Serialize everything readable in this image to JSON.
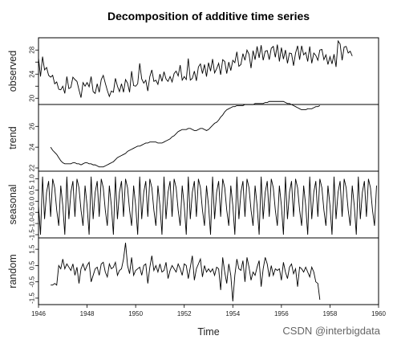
{
  "watermark": "CSDN @interbigdata",
  "chart_data": {
    "type": "line",
    "title": "Decomposition of additive time series",
    "xlabel": "Time",
    "x_range": [
      1946.0,
      1960.0
    ],
    "x_ticks": [
      1946,
      1948,
      1950,
      1952,
      1954,
      1956,
      1958,
      1960
    ],
    "frequency": 12,
    "start": 1946.0,
    "panels": [
      {
        "name": "observed",
        "ylabel": "observed",
        "ylim": [
          19.5,
          29.5
        ],
        "y_ticks": [
          20,
          22,
          24,
          26,
          28
        ],
        "y_tick_labels": [
          "20",
          "",
          "24",
          "",
          "28"
        ],
        "values": [
          26.7,
          23.6,
          26.9,
          24.7,
          25.1,
          23.8,
          23.5,
          23.8,
          22.4,
          22.7,
          21.5,
          21.4,
          22.0,
          20.8,
          23.6,
          21.6,
          21.8,
          23.5,
          23.1,
          22.8,
          21.4,
          20.1,
          22.6,
          22.0,
          22.6,
          21.9,
          23.6,
          21.1,
          20.8,
          22.4,
          21.0,
          23.1,
          23.8,
          22.5,
          21.3,
          20.3,
          21.2,
          21.0,
          23.3,
          22.0,
          21.1,
          22.4,
          21.0,
          23.1,
          22.5,
          21.0,
          24.5,
          22.1,
          22.0,
          22.4,
          25.8,
          23.2,
          22.5,
          23.0,
          21.2,
          23.6,
          24.7,
          22.8,
          23.0,
          22.3,
          24.0,
          22.8,
          24.4,
          23.2,
          22.8,
          23.6,
          22.7,
          24.1,
          24.5,
          23.7,
          25.5,
          23.0,
          23.6,
          23.1,
          26.6,
          23.0,
          23.3,
          24.5,
          22.9,
          25.2,
          25.7,
          24.1,
          25.6,
          23.6,
          25.9,
          24.5,
          26.5,
          24.2,
          24.9,
          25.8,
          23.9,
          26.4,
          26.1,
          24.1,
          26.0,
          24.6,
          26.3,
          25.9,
          27.7,
          25.3,
          25.6,
          27.4,
          26.3,
          28.0,
          27.3,
          25.0,
          27.9,
          26.4,
          28.6,
          26.7,
          28.8,
          26.3,
          27.8,
          27.9,
          26.4,
          28.3,
          28.6,
          26.8,
          28.9,
          26.1,
          28.4,
          26.5,
          28.0,
          25.8,
          27.5,
          27.4,
          25.4,
          27.5,
          28.7,
          26.4,
          28.7,
          27.2,
          27.6,
          26.1,
          28.6,
          25.8,
          27.5,
          27.1,
          26.3,
          28.0,
          28.1,
          26.4,
          27.2,
          25.6,
          26.9,
          25.7,
          27.3,
          25.2,
          29.5,
          29.0,
          26.3,
          28.5,
          28.6,
          27.5,
          27.8,
          27.0
        ],
        "value_unit": "observed"
      },
      {
        "name": "trend",
        "ylabel": "trend",
        "ylim": [
          22.0,
          27.8
        ],
        "y_ticks": [
          22,
          24,
          26
        ],
        "y_tick_labels": [
          "22",
          "24",
          "26"
        ],
        "values": [
          null,
          null,
          null,
          null,
          null,
          null,
          24.0,
          23.7,
          23.5,
          23.3,
          23.0,
          22.7,
          22.5,
          22.4,
          22.4,
          22.4,
          22.4,
          22.5,
          22.5,
          22.4,
          22.4,
          22.3,
          22.4,
          22.5,
          22.5,
          22.4,
          22.4,
          22.3,
          22.3,
          22.2,
          22.1,
          22.1,
          22.1,
          22.2,
          22.3,
          22.4,
          22.5,
          22.6,
          22.8,
          23.0,
          23.1,
          23.2,
          23.3,
          23.4,
          23.6,
          23.7,
          23.8,
          23.9,
          24.0,
          24.1,
          24.1,
          24.2,
          24.3,
          24.4,
          24.4,
          24.5,
          24.5,
          24.5,
          24.5,
          24.4,
          24.4,
          24.4,
          24.5,
          24.6,
          24.7,
          24.8,
          25.0,
          25.1,
          25.3,
          25.5,
          25.6,
          25.7,
          25.7,
          25.7,
          25.8,
          25.8,
          25.7,
          25.6,
          25.6,
          25.7,
          25.8,
          25.8,
          25.7,
          25.6,
          25.7,
          25.9,
          26.1,
          26.3,
          26.4,
          26.6,
          26.9,
          27.1,
          27.4,
          27.6,
          27.7,
          27.8,
          27.9,
          27.9,
          28.0,
          28.0,
          28.0,
          28.0,
          28.1,
          28.1,
          28.1,
          28.1,
          28.1,
          28.2,
          28.2,
          28.2,
          28.2,
          28.2,
          28.3,
          28.3,
          28.4,
          28.4,
          28.4,
          28.4,
          28.4,
          28.4,
          28.4,
          28.4,
          28.3,
          28.2,
          28.2,
          28.1,
          28.0,
          27.9,
          27.8,
          27.7,
          27.6,
          27.6,
          27.6,
          27.7,
          27.7,
          27.7,
          27.8,
          27.9,
          27.9,
          28.0,
          null,
          null,
          null,
          null,
          null,
          null
        ],
        "value_unit": "trend"
      },
      {
        "name": "seasonal",
        "ylabel": "seasonal",
        "ylim": [
          -1.5,
          1.2
        ],
        "y_ticks": [
          -1.5,
          -1.0,
          -0.5,
          0.0,
          0.5,
          1.0
        ],
        "y_tick_labels": [
          "-1.5",
          "-1.0",
          "-0.5",
          "0.0",
          "0.5",
          "1.0"
        ],
        "pattern": [
          -0.2,
          -1.5,
          1.1,
          -0.8,
          0.4,
          0.9,
          -0.7,
          1.0,
          0.6,
          -0.4,
          -1.1,
          0.7
        ],
        "repeats": 14
      },
      {
        "name": "random",
        "ylabel": "random",
        "ylim": [
          -1.7,
          2.0
        ],
        "y_ticks": [
          -1.5,
          -0.5,
          0.5,
          1.5
        ],
        "y_tick_labels": [
          "-1.5",
          "-0.5",
          "0.5",
          "1.5"
        ],
        "values": [
          null,
          null,
          null,
          null,
          null,
          null,
          -0.7,
          -0.7,
          -0.6,
          -0.7,
          0.5,
          0.3,
          0.9,
          0.3,
          0.6,
          0.4,
          0.2,
          0.6,
          -0.1,
          0.4,
          -0.6,
          0.3,
          0.6,
          0.2,
          0.5,
          0.7,
          -0.5,
          -0.1,
          0.3,
          0.4,
          -0.1,
          0.6,
          0.7,
          0.1,
          -0.2,
          0.6,
          0.3,
          0.4,
          0.7,
          -0.1,
          0.2,
          0.3,
          0.9,
          1.9,
          0.5,
          0.0,
          1.0,
          -0.1,
          0.2,
          0.3,
          0.4,
          -0.1,
          0.5,
          0.6,
          -0.6,
          0.4,
          1.1,
          0.2,
          0.5,
          0.1,
          0.6,
          0.1,
          0.2,
          0.7,
          -0.3,
          0.2,
          0.5,
          0.3,
          0.1,
          0.6,
          0.3,
          -0.1,
          0.6,
          0.5,
          -0.3,
          0.4,
          1.1,
          -0.4,
          0.3,
          0.6,
          0.9,
          -0.2,
          0.5,
          0.1,
          0.3,
          0.1,
          0.3,
          -0.1,
          0.4,
          0.3,
          -1.0,
          1.0,
          0.1,
          -0.6,
          0.6,
          -0.1,
          -1.7,
          -0.1,
          0.9,
          0.3,
          0.2,
          0.8,
          -0.5,
          1.0,
          0.4,
          -0.4,
          0.1,
          -0.1,
          0.4,
          0.8,
          -0.8,
          0.3,
          1.0,
          0.6,
          -0.2,
          0.5,
          -0.1,
          0.3,
          0.2,
          0.3,
          -0.4,
          0.7,
          0.1,
          -0.3,
          0.4,
          0.6,
          0.0,
          0.3,
          -0.8,
          0.4,
          0.3,
          0.1,
          0.4,
          0.1,
          -0.2,
          0.4,
          0.1,
          -0.5,
          -0.6,
          -1.6,
          null,
          null,
          null,
          null,
          null,
          null
        ],
        "value_unit": "random"
      }
    ]
  }
}
